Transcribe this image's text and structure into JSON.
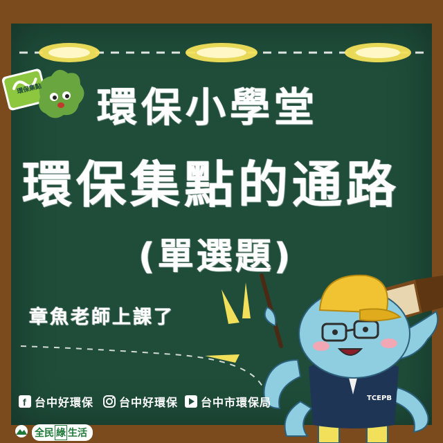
{
  "headline": {
    "line1": "環保小學堂",
    "line2": "環保集點的通路",
    "line3": "(單選題)"
  },
  "subtitle": "章魚老師上課了",
  "badge": {
    "label": "環保集點"
  },
  "social": {
    "facebook": "台中好環保",
    "instagram": "台中好環保",
    "youtube": "台中市環保局"
  },
  "footer": {
    "prefix": "全民",
    "highlight": "綠",
    "suffix": "生活"
  },
  "octopus": {
    "shirt_text": "TCEPB"
  },
  "colors": {
    "board": "#1f4d3a",
    "frame": "#7b4b1d",
    "chalk": "#ffffff",
    "yellow": "#f3e05a",
    "octopus": "#8fcde0",
    "hat": "#f1c232",
    "vest": "#1e3556"
  }
}
